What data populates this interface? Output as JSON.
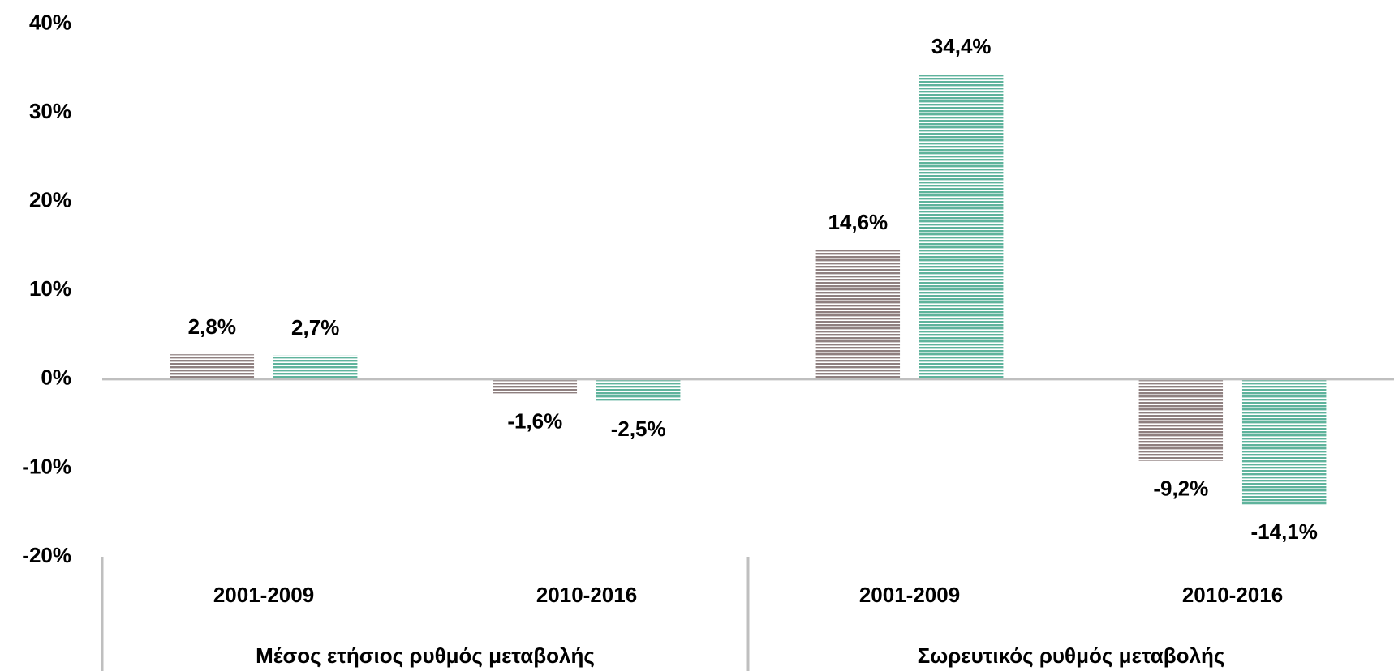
{
  "chart_data": {
    "type": "bar",
    "categories": [
      "2001-2009",
      "2010-2016",
      "2001-2009",
      "2010-2016"
    ],
    "groups": [
      "Μέσος ετήσιος ρυθμός μεταβολής",
      "Σωρευτικός ρυθμός μεταβολής"
    ],
    "series": [
      {
        "color": "#8f8080",
        "values": [
          2.8,
          -1.6,
          14.6,
          -9.2
        ],
        "value_labels": [
          "2,8%",
          "-1,6%",
          "14,6%",
          "-9,2%"
        ]
      },
      {
        "color": "#5fb39c",
        "values": [
          2.7,
          -2.5,
          34.4,
          -14.1
        ],
        "value_labels": [
          "2,7%",
          "-2,5%",
          "34,4%",
          "-14,1%"
        ]
      }
    ],
    "ylim": [
      -20,
      40
    ],
    "yticks": [
      {
        "value": -20,
        "label": "-20%"
      },
      {
        "value": -10,
        "label": "-10%"
      },
      {
        "value": 0,
        "label": "0%"
      },
      {
        "value": 10,
        "label": "10%"
      },
      {
        "value": 20,
        "label": "20%"
      },
      {
        "value": 30,
        "label": "30%"
      },
      {
        "value": 40,
        "label": "40%"
      }
    ],
    "grid": false
  }
}
